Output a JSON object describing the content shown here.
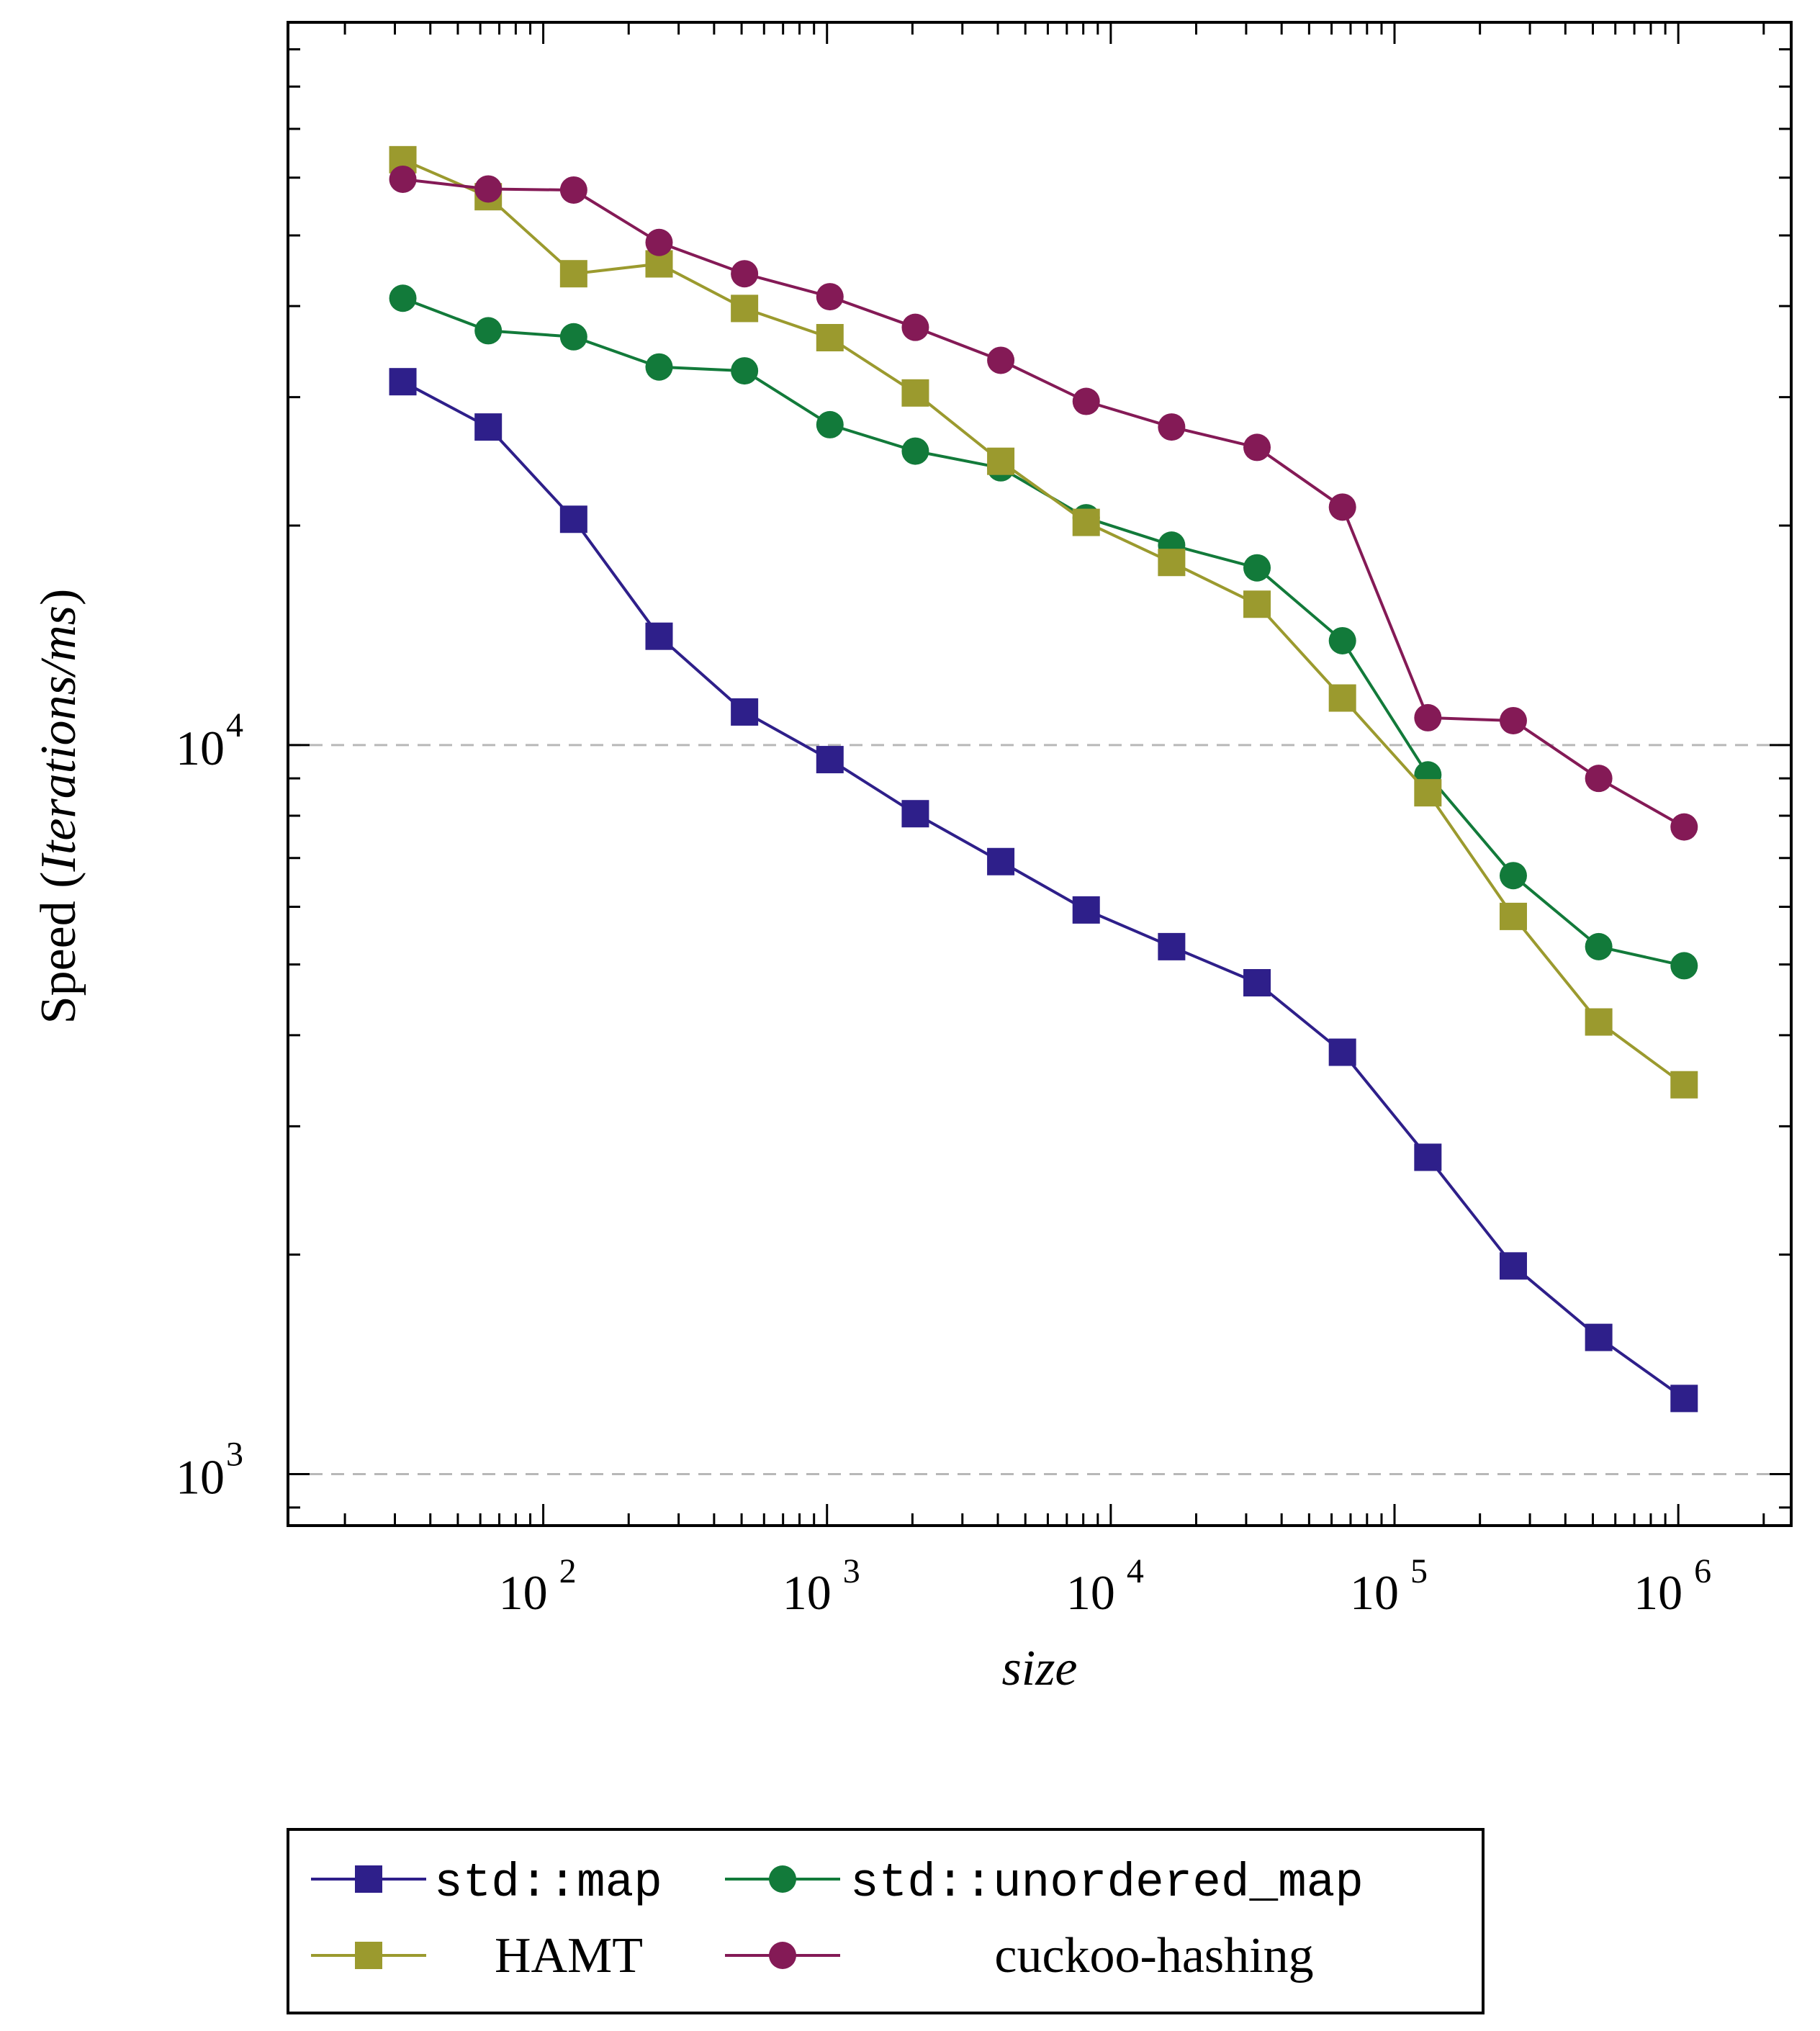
{
  "chart_data": {
    "type": "line",
    "scale": {
      "x": "log",
      "y": "log"
    },
    "xlabel": "size",
    "ylabel_prefix": "Speed",
    "ylabel_italic": "Iterations/ms",
    "xlim": [
      12.6,
      2500000
    ],
    "ylim": [
      850,
      98000
    ],
    "x_ticks": [
      {
        "base": "10",
        "exp": "2",
        "value": 100
      },
      {
        "base": "10",
        "exp": "3",
        "value": 1000
      },
      {
        "base": "10",
        "exp": "4",
        "value": 10000
      },
      {
        "base": "10",
        "exp": "5",
        "value": 100000
      },
      {
        "base": "10",
        "exp": "6",
        "value": 1000000
      }
    ],
    "y_ticks": [
      {
        "base": "10",
        "exp": "3",
        "value": 1000
      },
      {
        "base": "10",
        "exp": "4",
        "value": 10000
      }
    ],
    "grid": "major y dashed",
    "x": [
      32,
      64,
      128,
      256,
      512,
      1024,
      2048,
      4096,
      8192,
      16384,
      32768,
      65536,
      131072,
      262144,
      524288,
      1048576
    ],
    "series": [
      {
        "name": "std::map",
        "font": "mono",
        "color": "#2e1f8a",
        "marker": "square",
        "values": [
          31500,
          27300,
          20400,
          14100,
          11100,
          9550,
          8050,
          6920,
          5940,
          5290,
          4720,
          3790,
          2720,
          1930,
          1540,
          1270
        ]
      },
      {
        "name": "std::unordered_map",
        "font": "mono",
        "color": "#127a3a",
        "marker": "circle",
        "values": [
          41000,
          37000,
          36300,
          33000,
          32600,
          27500,
          25300,
          24000,
          20500,
          18800,
          17500,
          13900,
          9100,
          6620,
          5290,
          4980
        ]
      },
      {
        "name": "HAMT",
        "font": "serif",
        "color": "#9b9a2e",
        "marker": "square",
        "values": [
          63500,
          56500,
          44300,
          45700,
          39700,
          36200,
          30400,
          24500,
          20200,
          17800,
          15600,
          11600,
          8600,
          5820,
          4170,
          3420
        ]
      },
      {
        "name": "cuckoo-hashing",
        "font": "serif",
        "color": "#841a56",
        "marker": "circle",
        "values": [
          59700,
          57900,
          57700,
          48900,
          44300,
          41200,
          37400,
          33700,
          29600,
          27300,
          25600,
          21200,
          10900,
          10800,
          9000,
          7720
        ]
      }
    ]
  }
}
